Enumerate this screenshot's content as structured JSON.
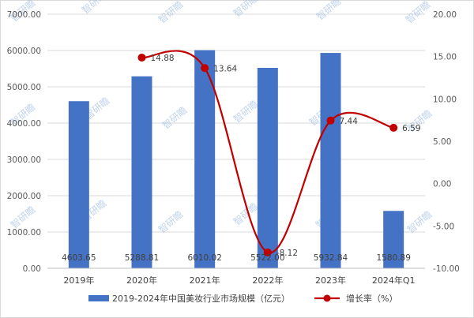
{
  "chart_data": {
    "type": "bar",
    "categories": [
      "2019年",
      "2020年",
      "2021年",
      "2022年",
      "2023年",
      "2024年Q1"
    ],
    "series": [
      {
        "name": "2019-2024年中国美妆行业市场规模（亿元）",
        "kind": "bar",
        "axis": "left",
        "values": [
          4603.65,
          5288.81,
          6010.02,
          5522.0,
          5932.84,
          1580.89
        ],
        "labels": [
          "4603.65",
          "5288.81",
          "6010.02",
          "5522.00",
          "5932.84",
          "1580.89"
        ],
        "color": "#4472C4"
      },
      {
        "name": "增长率（%）",
        "kind": "line",
        "axis": "right",
        "values": [
          null,
          14.88,
          13.64,
          -8.12,
          7.44,
          6.59
        ],
        "labels": [
          "",
          "14.88",
          "13.64",
          "-8.12",
          "7.44",
          "6.59"
        ],
        "color": "#C00000"
      }
    ],
    "y_left": {
      "ylim": [
        0,
        7000
      ],
      "ticks": [
        "0.00",
        "1000.00",
        "2000.00",
        "3000.00",
        "4000.00",
        "5000.00",
        "6000.00",
        "7000.00"
      ]
    },
    "y_right": {
      "ylim": [
        -10,
        20
      ],
      "ticks": [
        "-10.00",
        "-5.00",
        "0.00",
        "5.00",
        "10.00",
        "15.00",
        "20.00"
      ]
    },
    "grid": true,
    "legend_position": "bottom"
  },
  "watermark": "智研瞻"
}
